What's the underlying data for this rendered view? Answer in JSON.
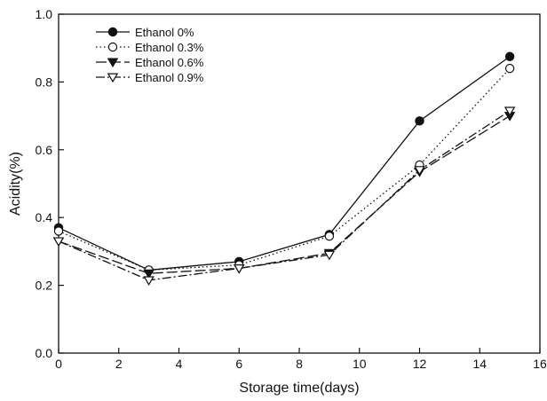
{
  "chart_data": {
    "type": "line",
    "title": "",
    "xlabel": "Storage time(days)",
    "ylabel": "Acidity(%)",
    "xlim": [
      0,
      16
    ],
    "ylim": [
      0.0,
      1.0
    ],
    "xticks": [
      0,
      2,
      4,
      6,
      8,
      10,
      12,
      14,
      16
    ],
    "yticks": [
      0.0,
      0.2,
      0.4,
      0.6,
      0.8,
      1.0
    ],
    "ytick_labels": [
      "0.0",
      "0.2",
      "0.4",
      "0.6",
      "0.8",
      "1.0"
    ],
    "grid": false,
    "legend_position": "top-left",
    "x": [
      0,
      3,
      6,
      9,
      12,
      15
    ],
    "series": [
      {
        "name": "Ethanol 0%",
        "values": [
          0.37,
          0.245,
          0.27,
          0.35,
          0.685,
          0.875
        ],
        "marker": "filled-circle",
        "line": "solid"
      },
      {
        "name": "Ethanol 0.3%",
        "values": [
          0.36,
          0.245,
          0.26,
          0.345,
          0.555,
          0.84
        ],
        "marker": "open-circle",
        "line": "dotted"
      },
      {
        "name": "Ethanol 0.6%",
        "values": [
          0.33,
          0.235,
          0.25,
          0.295,
          0.535,
          0.7
        ],
        "marker": "filled-triangle-down",
        "line": "dashed"
      },
      {
        "name": "Ethanol 0.9%",
        "values": [
          0.33,
          0.215,
          0.25,
          0.29,
          0.54,
          0.715
        ],
        "marker": "open-triangle-down",
        "line": "dash-dot"
      }
    ]
  }
}
